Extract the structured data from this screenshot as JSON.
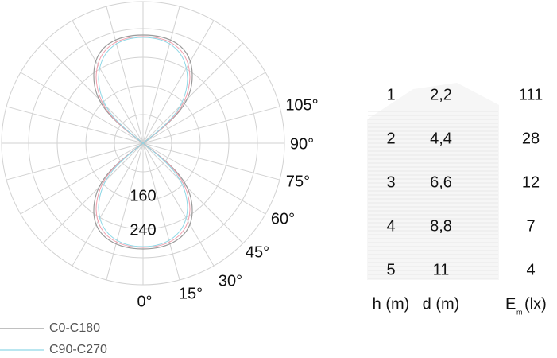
{
  "polar": {
    "angle_labels": [
      "0°",
      "15°",
      "30°",
      "45°",
      "60°",
      "75°",
      "90°",
      "105°"
    ],
    "radial_labels": [
      "160",
      "240"
    ],
    "legend": [
      {
        "name": "C0-C180",
        "color": "#9a9a9a"
      },
      {
        "name": "C90-C270",
        "color": "#8fd8e6"
      }
    ]
  },
  "table": {
    "header": [
      "h (m)",
      "d (m)",
      "E",
      "m",
      "(lx)"
    ],
    "rows": [
      [
        "1",
        "2,2",
        "111"
      ],
      [
        "2",
        "4,4",
        "28"
      ],
      [
        "3",
        "6,6",
        "12"
      ],
      [
        "4",
        "8,8",
        "7"
      ],
      [
        "5",
        "11",
        "4"
      ]
    ]
  }
}
